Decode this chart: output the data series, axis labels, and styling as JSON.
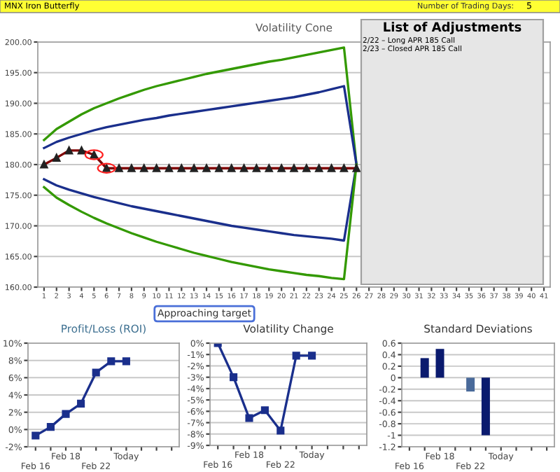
{
  "chart_data": [
    {
      "type": "line",
      "title": "Volatility Cone",
      "categories": [
        "1",
        "2",
        "3",
        "4",
        "5",
        "6",
        "7",
        "8",
        "9",
        "10",
        "11",
        "12",
        "13",
        "14",
        "15",
        "16",
        "17",
        "18",
        "19",
        "20",
        "21",
        "22",
        "23",
        "24",
        "25",
        "26",
        "27",
        "28",
        "29",
        "30",
        "31",
        "32",
        "33",
        "34",
        "35",
        "36",
        "37",
        "38",
        "39",
        "40",
        "41"
      ],
      "series": [
        {
          "color": "#339900",
          "values": [
            184.0,
            185.8,
            187.0,
            188.2,
            189.2,
            190.0,
            190.8,
            191.5,
            192.2,
            192.8,
            193.3,
            193.8,
            194.3,
            194.8,
            195.2,
            195.6,
            196.0,
            196.4,
            196.8,
            197.1,
            197.5,
            197.9,
            198.3,
            198.7,
            199.1,
            180.0,
            null,
            null,
            null,
            null,
            null,
            null,
            null,
            null,
            null,
            null,
            null,
            null,
            null,
            null,
            null
          ]
        },
        {
          "color": "#1a2f8c",
          "values": [
            182.7,
            183.7,
            184.4,
            185.0,
            185.6,
            186.1,
            186.5,
            186.9,
            187.3,
            187.6,
            188.0,
            188.3,
            188.6,
            188.9,
            189.2,
            189.5,
            189.8,
            190.1,
            190.4,
            190.7,
            191.0,
            191.4,
            191.8,
            192.3,
            192.8,
            180.0,
            null,
            null,
            null,
            null,
            null,
            null,
            null,
            null,
            null,
            null,
            null,
            null,
            null,
            null,
            null
          ]
        },
        {
          "color": "#1a2f8c",
          "values": [
            177.6,
            176.6,
            175.9,
            175.3,
            174.7,
            174.2,
            173.7,
            173.2,
            172.8,
            172.4,
            172.0,
            171.6,
            171.2,
            170.8,
            170.4,
            170.0,
            169.7,
            169.4,
            169.1,
            168.8,
            168.5,
            168.3,
            168.1,
            167.9,
            167.6,
            180.0,
            null,
            null,
            null,
            null,
            null,
            null,
            null,
            null,
            null,
            null,
            null,
            null,
            null,
            null,
            null
          ]
        },
        {
          "color": "#339900",
          "values": [
            176.3,
            174.6,
            173.4,
            172.3,
            171.3,
            170.4,
            169.6,
            168.8,
            168.1,
            167.4,
            166.8,
            166.2,
            165.6,
            165.1,
            164.6,
            164.1,
            163.7,
            163.3,
            162.9,
            162.6,
            162.3,
            162.0,
            161.8,
            161.5,
            161.3,
            180.0,
            null,
            null,
            null,
            null,
            null,
            null,
            null,
            null,
            null,
            null,
            null,
            null,
            null,
            null,
            null
          ]
        },
        {
          "color": "#800000",
          "marker": "triangle",
          "values": [
            180.0,
            181.1,
            182.3,
            182.3,
            181.6,
            179.4,
            179.4,
            179.4,
            179.4,
            179.4,
            179.4,
            179.4,
            179.4,
            179.4,
            179.4,
            179.4,
            179.4,
            179.4,
            179.4,
            179.4,
            179.4,
            179.4,
            179.4,
            179.4,
            179.4,
            179.4,
            null,
            null,
            null,
            null,
            null,
            null,
            null,
            null,
            null,
            null,
            null,
            null,
            null,
            null,
            null
          ]
        }
      ],
      "ylim": [
        160,
        200
      ],
      "yticks": [
        {
          "value": 160,
          "label": "160.00"
        },
        {
          "value": 165,
          "label": "165.00"
        },
        {
          "value": 170,
          "label": "170.00"
        },
        {
          "value": 175,
          "label": "175.00"
        },
        {
          "value": 180,
          "label": "180.00"
        },
        {
          "value": 185,
          "label": "185.00"
        },
        {
          "value": 190,
          "label": "190.00"
        },
        {
          "value": 195,
          "label": "195.00"
        },
        {
          "value": 200,
          "label": "200.00"
        }
      ],
      "grid": "y",
      "legend": false,
      "annotations": [
        "MNX Iron Butterfly",
        "Number of Trading Days:",
        "5",
        "List of Adjustments",
        "2/22 – Long APR 185 Call",
        "2/23 – Closed APR 185 Call",
        "Approaching target"
      ]
    },
    {
      "type": "line",
      "title": "Profit/Loss (ROI)",
      "categories": [
        "Feb 16",
        null,
        "Feb 18",
        null,
        "Feb 22",
        null,
        "Today",
        null,
        null,
        null
      ],
      "series": [
        {
          "color": "#1a2f8c",
          "marker": "square",
          "values": [
            -0.7,
            0.3,
            1.8,
            3.0,
            6.6,
            7.9,
            7.9,
            null,
            null,
            null
          ]
        }
      ],
      "ylim": [
        -2,
        10
      ],
      "yticks": [
        {
          "value": -2,
          "label": "-2%"
        },
        {
          "value": 0,
          "label": "0%"
        },
        {
          "value": 2,
          "label": "2%"
        },
        {
          "value": 4,
          "label": "4%"
        },
        {
          "value": 6,
          "label": "6%"
        },
        {
          "value": 8,
          "label": "8%"
        },
        {
          "value": 10,
          "label": "10%"
        }
      ],
      "grid": "y",
      "legend": false
    },
    {
      "type": "line",
      "title": "Volatility Change",
      "categories": [
        "Feb 16",
        null,
        "Feb 18",
        null,
        "Feb 22",
        null,
        "Today",
        null,
        null,
        null
      ],
      "series": [
        {
          "color": "#1a2f8c",
          "marker": "square",
          "values": [
            0.0,
            -3.0,
            -6.6,
            -5.9,
            -7.7,
            -1.1,
            -1.1,
            null,
            null,
            null
          ]
        }
      ],
      "ylim": [
        -9,
        0
      ],
      "yticks": [
        {
          "value": -9,
          "label": "-9%"
        },
        {
          "value": -8,
          "label": "-8%"
        },
        {
          "value": -7,
          "label": "-7%"
        },
        {
          "value": -6,
          "label": "-6%"
        },
        {
          "value": -5,
          "label": "-5%"
        },
        {
          "value": -4,
          "label": "-4%"
        },
        {
          "value": -3,
          "label": "-3%"
        },
        {
          "value": -2,
          "label": "-2%"
        },
        {
          "value": -1,
          "label": "-1%"
        },
        {
          "value": 0,
          "label": "0%"
        }
      ],
      "grid": "y",
      "legend": false
    },
    {
      "type": "bar",
      "title": "Standard Deviations",
      "categories": [
        "Feb 16",
        null,
        "Feb 18",
        null,
        "Feb 22",
        null,
        "Today",
        null,
        null,
        null
      ],
      "values": [
        null,
        0.34,
        0.5,
        0.0,
        -0.24,
        -1.0,
        null,
        null,
        null,
        null
      ],
      "colors": [
        "#0a1a6e",
        "#0a1a6e",
        "#0a1a6e",
        "#0a1a6e",
        "#4a6a9a",
        "#0a1a6e",
        "#0a1a6e",
        "#0a1a6e",
        "#0a1a6e",
        "#0a1a6e"
      ],
      "ylim": [
        -1.2,
        0.6
      ],
      "yticks": [
        -1.2,
        -1,
        -0.8,
        -0.6,
        -0.4,
        -0.2,
        0,
        0.2,
        0.4,
        0.6
      ],
      "grid": "y",
      "legend": false
    }
  ]
}
